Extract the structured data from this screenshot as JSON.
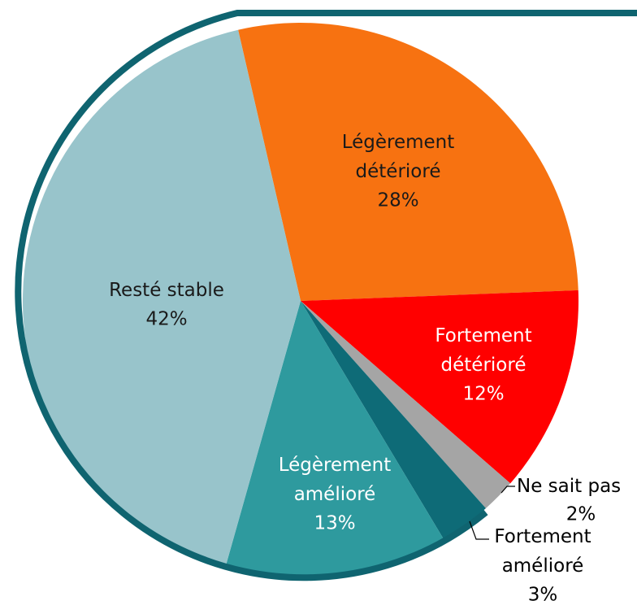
{
  "chart_data": {
    "type": "pie",
    "categories": [
      "Légèrement détérioré",
      "Fortement détérioré",
      "Ne sait pas",
      "Fortement amélioré",
      "Légèrement amélioré",
      "Resté stable"
    ],
    "values": [
      28,
      12,
      2,
      3,
      13,
      42
    ],
    "value_labels": [
      "28%",
      "12%",
      "2%",
      "3%",
      "13%",
      "42%"
    ],
    "colors": [
      "#f77211",
      "#ff0000",
      "#a5a5a5",
      "#0e6b77",
      "#2e9a9e",
      "#98c4cb"
    ]
  }
}
